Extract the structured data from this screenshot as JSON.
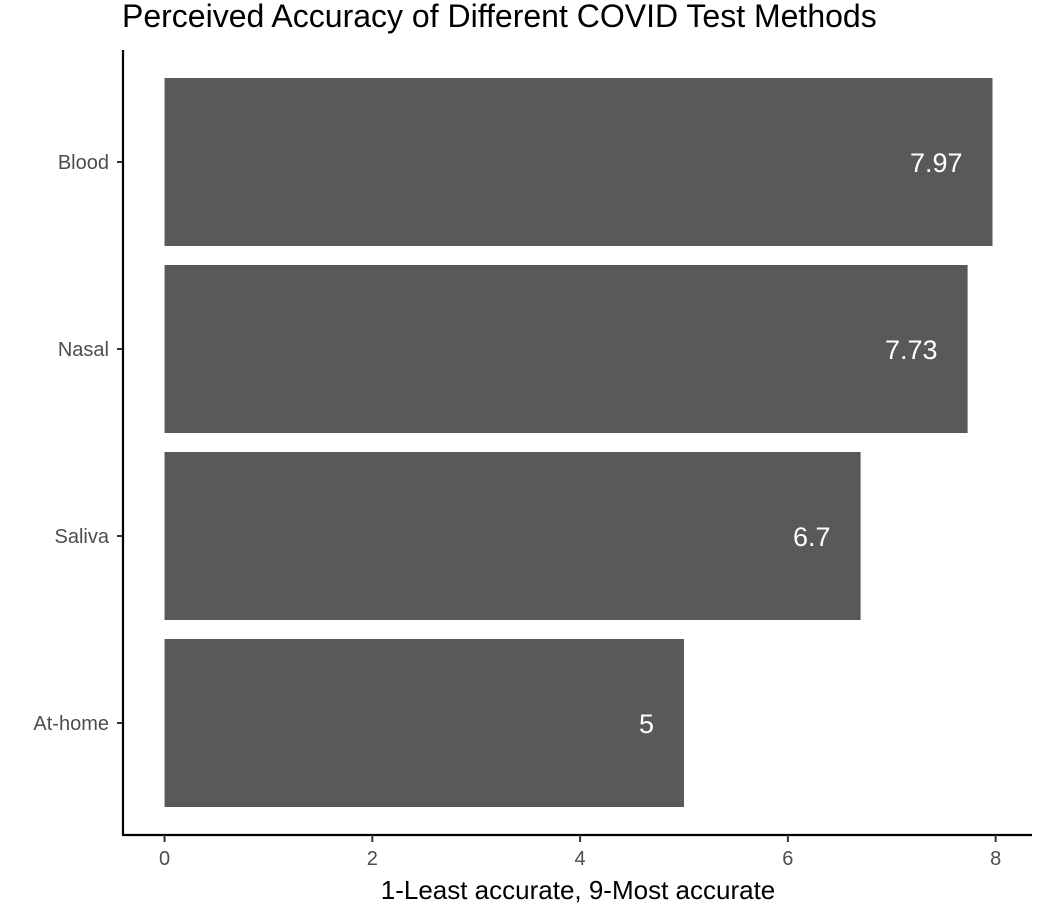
{
  "chart_data": {
    "type": "bar",
    "orientation": "horizontal",
    "title": "Perceived Accuracy of Different COVID Test Methods",
    "xlabel": "1-Least accurate, 9-Most accurate",
    "ylabel": "",
    "categories": [
      "Blood",
      "Nasal",
      "Saliva",
      "At-home"
    ],
    "values": [
      7.97,
      7.73,
      6.7,
      5
    ],
    "data_labels": [
      "7.97",
      "7.73",
      "6.7",
      "5"
    ],
    "x_ticks": [
      0,
      2,
      4,
      6,
      8
    ],
    "x_tick_labels": [
      "0",
      "2",
      "4",
      "6",
      "8"
    ],
    "xlim": [
      -0.4,
      8.35
    ],
    "grid": false,
    "legend": "none",
    "bar_color": "#595959",
    "label_color": "#ffffff",
    "axis_color": "#000000"
  }
}
